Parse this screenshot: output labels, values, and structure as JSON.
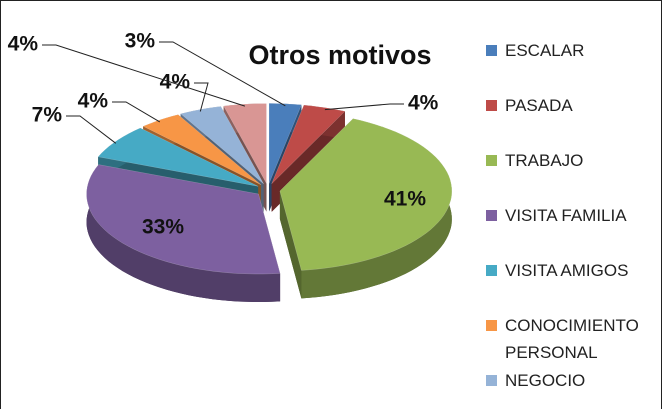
{
  "chart_data": {
    "type": "pie3d",
    "title": "Otros motivos",
    "categories": [
      "ESCALAR",
      "PASADA",
      "TRABAJO",
      "VISITA FAMILIA",
      "VISITA AMIGOS",
      "CONOCIMIENTO PERSONAL",
      "NEGOCIO",
      null
    ],
    "values": [
      3,
      4,
      41,
      33,
      7,
      4,
      4,
      4
    ],
    "value_labels": [
      "3%",
      "4%",
      "41%",
      "33%",
      "7%",
      "4%",
      "4%",
      "4%"
    ],
    "colors": [
      "#4a7ebb",
      "#be4b48",
      "#98b954",
      "#7d60a0",
      "#46aac5",
      "#f79646",
      "#95b3d7",
      "#d99694"
    ],
    "legend": "right"
  }
}
